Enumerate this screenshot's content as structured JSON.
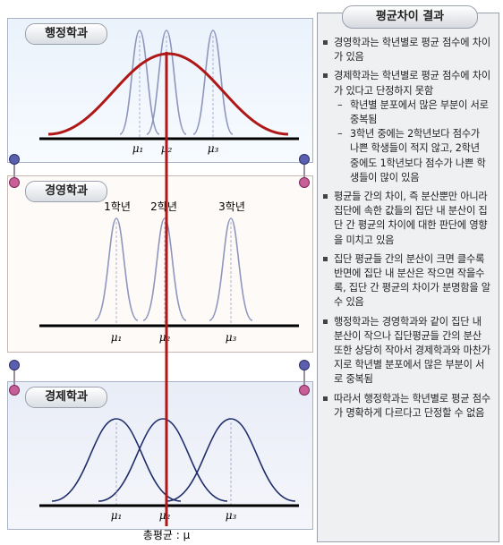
{
  "panels": {
    "admin": {
      "label": "행정학과"
    },
    "business": {
      "label": "경영학과"
    },
    "econ": {
      "label": "경제학과"
    }
  },
  "year_labels": [
    "1학년",
    "2학년",
    "3학년"
  ],
  "mu_labels": [
    "μ₁",
    "μ₂",
    "μ₃"
  ],
  "grand_mean_label": "총평균 : μ",
  "result_panel": {
    "title": "평균차이 결과",
    "items": [
      {
        "text": "경영학과는 학년별로 평균 점수에 차이가 있음",
        "subs": []
      },
      {
        "text": "경제학과는 학년별로 평균 점수에 차이가 있다고 단정하지 못함",
        "subs": [
          "학년별 분포에서 많은 부분이 서로 중복됨",
          "3학년 중에는 2학년보다 점수가 나쁜 학생들이 적지 않고, 2학년 중에도 1학년보다 점수가 나쁜 학생들이 많이 있음"
        ]
      },
      {
        "text": "평균들 간의 차이, 즉 분산뿐만 아니라 집단에 속한 값들의 집단 내 분산이 집단 간 평균의 차이에 대한 판단에 영향을 미치고 있음",
        "subs": []
      },
      {
        "text": "집단 평균들 간의 분산이 크면 클수록 반면에 집단 내 분산은 작으면 작을수록, 집단 간 평균의 차이가 분명함을 알 수 있음",
        "subs": []
      },
      {
        "text": "행정학과는 경영학과와 같이 집단 내 분산이 작으나 집단평균들 간의 분산 또한 상당히 작아서 경제학과와 마찬가지로 학년별 분포에서 많은 부분이 서로 중복됨",
        "subs": []
      },
      {
        "text": "따라서 행정학과는 학년별로 평균 점수가 명확하게 다르다고 단정할 수 없음",
        "subs": []
      }
    ]
  },
  "colors": {
    "grand_mean_line": "#b01818",
    "admin_wide_curve": "#b01818",
    "narrow_curve": "#8f96bd",
    "econ_curve": "#1f2d6b",
    "axis": "#000000"
  }
}
